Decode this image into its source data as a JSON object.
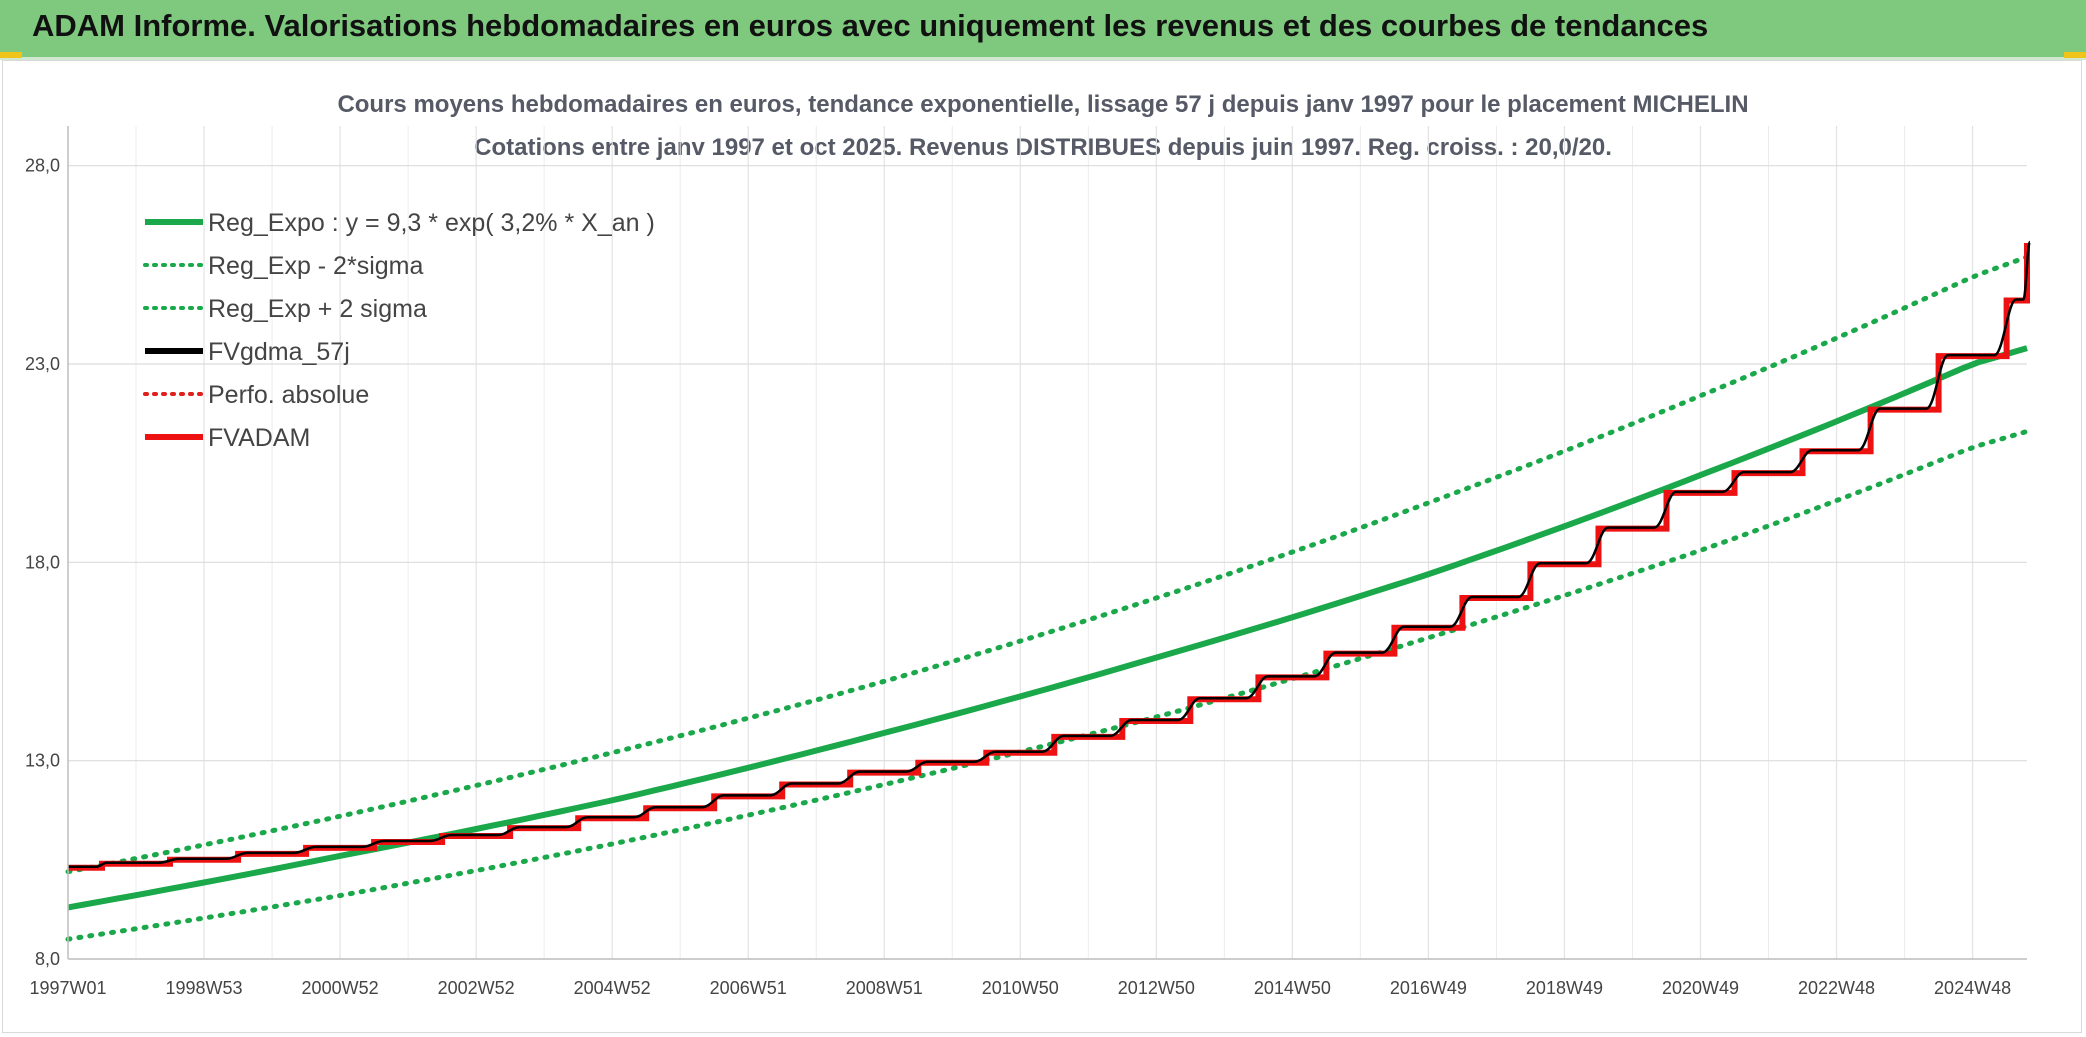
{
  "banner": {
    "title": "ADAM Informe. Valorisations hebdomadaires en euros avec uniquement les revenus et des courbes de tendances"
  },
  "chart_data": {
    "type": "line",
    "title": "Cours moyens hebdomadaires en euros, tendance exponentielle, lissage 57 j depuis janv 1997 pour le placement MICHELIN",
    "subtitle": "Cotations entre janv 1997 et oct 2025. Revenus DISTRIBUES depuis juin 1997. Reg. croiss. : 20,0/20.",
    "xlabel": "",
    "ylabel": "",
    "x_tick_labels": [
      "1997W01",
      "1998W53",
      "2000W52",
      "2002W52",
      "2004W52",
      "2006W51",
      "2008W51",
      "2010W50",
      "2012W50",
      "2014W50",
      "2016W49",
      "2018W49",
      "2020W49",
      "2022W48",
      "2024W48"
    ],
    "x_tick_years": [
      1997.0,
      1999.0,
      2001.0,
      2003.0,
      2005.0,
      2007.0,
      2009.0,
      2011.0,
      2013.0,
      2015.0,
      2017.0,
      2019.0,
      2021.0,
      2023.0,
      2025.0
    ],
    "xlim": [
      1997.0,
      2025.8
    ],
    "ylim": [
      8.0,
      29.0
    ],
    "y_ticks": [
      8.0,
      13.0,
      18.0,
      23.0,
      28.0
    ],
    "y_tick_labels": [
      "8,0",
      "13,0",
      "18,0",
      "23,0",
      "28,0"
    ],
    "grid": true,
    "legend_position": "top-left",
    "legend": [
      {
        "name": "Reg_Expo : y = 9,3 * exp( 3,2% *  X_an )",
        "color": "#1aa84a",
        "style": "solid"
      },
      {
        "name": "Reg_Exp - 2*sigma",
        "color": "#1aa84a",
        "style": "dotted"
      },
      {
        "name": "Reg_Exp + 2 sigma",
        "color": "#1aa84a",
        "style": "dotted"
      },
      {
        "name": "FVgdma_57j",
        "color": "#000000",
        "style": "solid"
      },
      {
        "name": "Perfo. absolue",
        "color": "#e0201b",
        "style": "dotted"
      },
      {
        "name": "FVADAM",
        "color": "#ee1111",
        "style": "solid"
      }
    ],
    "series": [
      {
        "name": "Reg_Expo : y = 9,3 * exp( 3,2% *  X_an )",
        "x": [
          1997.0,
          2001.0,
          2005.0,
          2009.0,
          2013.0,
          2017.0,
          2021.0,
          2025.0,
          2025.8
        ],
        "y": [
          9.3,
          10.6,
          12.0,
          13.7,
          15.6,
          17.7,
          20.2,
          23.0,
          23.4
        ]
      },
      {
        "name": "Reg_Exp - 2*sigma",
        "x": [
          1997.0,
          2001.0,
          2005.0,
          2009.0,
          2013.0,
          2017.0,
          2021.0,
          2025.0,
          2025.8
        ],
        "y": [
          8.5,
          9.6,
          10.9,
          12.4,
          14.1,
          16.1,
          18.3,
          20.9,
          21.3
        ]
      },
      {
        "name": "Reg_Exp + 2 sigma",
        "x": [
          1997.0,
          2001.0,
          2005.0,
          2009.0,
          2013.0,
          2017.0,
          2021.0,
          2025.0,
          2025.8
        ],
        "y": [
          10.2,
          11.6,
          13.2,
          15.0,
          17.1,
          19.5,
          22.2,
          25.2,
          25.7
        ]
      },
      {
        "name": "FVgdma_57j",
        "x": [
          1997.0,
          1997.5,
          1998.5,
          1999.5,
          2000.5,
          2001.5,
          2002.5,
          2003.5,
          2004.5,
          2005.5,
          2006.5,
          2007.5,
          2008.5,
          2009.5,
          2010.5,
          2011.5,
          2012.5,
          2013.5,
          2014.5,
          2015.5,
          2016.5,
          2017.5,
          2018.5,
          2019.5,
          2020.5,
          2021.5,
          2022.5,
          2023.5,
          2024.5,
          2025.5,
          2025.8
        ],
        "y": [
          10.3,
          10.35,
          10.45,
          10.55,
          10.7,
          10.85,
          11.0,
          11.2,
          11.45,
          11.7,
          12.0,
          12.3,
          12.6,
          12.85,
          13.1,
          13.45,
          13.85,
          14.3,
          14.85,
          15.4,
          16.0,
          16.7,
          17.5,
          18.4,
          19.3,
          20.0,
          20.6,
          21.4,
          22.5,
          23.8,
          25.1
        ]
      },
      {
        "name": "FVADAM",
        "steps_x": [
          1997.0,
          1997.5,
          1998.5,
          1999.5,
          2000.5,
          2001.5,
          2002.5,
          2003.5,
          2004.5,
          2005.5,
          2006.5,
          2007.5,
          2008.5,
          2009.5,
          2010.5,
          2011.5,
          2012.5,
          2013.5,
          2014.5,
          2015.5,
          2016.5,
          2017.5,
          2018.5,
          2019.5,
          2020.5,
          2021.5,
          2022.5,
          2023.5,
          2024.5,
          2025.5,
          2025.8
        ],
        "levels": [
          10.3,
          10.4,
          10.5,
          10.65,
          10.8,
          10.95,
          11.1,
          11.3,
          11.55,
          11.8,
          12.1,
          12.4,
          12.7,
          12.95,
          13.2,
          13.6,
          14.0,
          14.55,
          15.1,
          15.7,
          16.35,
          17.1,
          17.95,
          18.85,
          19.75,
          20.25,
          20.8,
          21.85,
          23.2,
          24.6,
          26.05
        ]
      }
    ]
  }
}
